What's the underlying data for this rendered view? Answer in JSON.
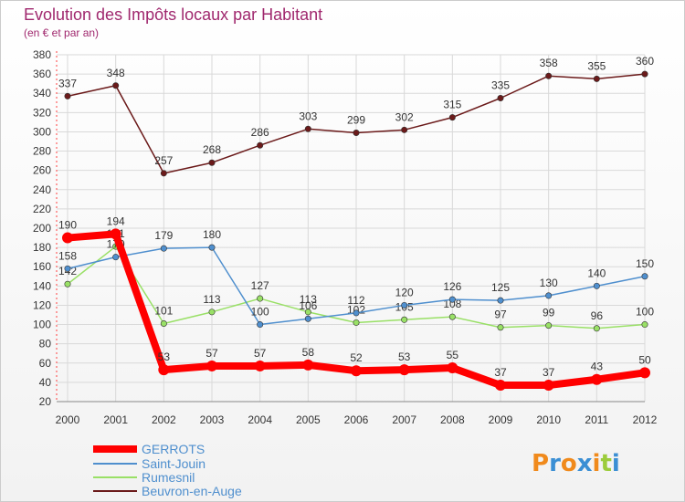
{
  "chart_data": {
    "type": "line",
    "title": "Evolution des Impôts locaux par Habitant",
    "subtitle": "(en € et par an)",
    "xlabel": "",
    "ylabel": "",
    "x": [
      "2000",
      "2001",
      "2002",
      "2003",
      "2004",
      "2005",
      "2006",
      "2007",
      "2008",
      "2009",
      "2010",
      "2011",
      "2012"
    ],
    "ylim": [
      20,
      380
    ],
    "yticks": [
      20,
      40,
      60,
      80,
      100,
      120,
      140,
      160,
      180,
      200,
      220,
      240,
      260,
      280,
      300,
      320,
      340,
      360,
      380
    ],
    "grid": true,
    "legend_position": "bottom-left",
    "series": [
      {
        "name": "GERROTS",
        "color": "#ff0000",
        "values": [
          190,
          194,
          53,
          57,
          57,
          58,
          52,
          53,
          55,
          37,
          37,
          43,
          50
        ]
      },
      {
        "name": "Saint-Jouin",
        "color": "#4f8fce",
        "values": [
          158,
          170,
          179,
          180,
          100,
          106,
          112,
          120,
          126,
          125,
          130,
          140,
          150
        ]
      },
      {
        "name": "Rumesnil",
        "color": "#99e066",
        "values": [
          142,
          181,
          101,
          113,
          127,
          113,
          102,
          105,
          108,
          97,
          99,
          96,
          100
        ]
      },
      {
        "name": "Beuvron-en-Auge",
        "color": "#6b1a1a",
        "values": [
          337,
          348,
          257,
          268,
          286,
          303,
          299,
          302,
          315,
          335,
          358,
          355,
          360
        ]
      }
    ]
  },
  "logo": {
    "text": "Proxiti",
    "letters": [
      "P",
      "r",
      "o",
      "x",
      "i",
      "t",
      "i"
    ],
    "colors": [
      "#f08a1c",
      "#3b8fd4",
      "#f08a1c",
      "#3b8fd4",
      "#f08a1c",
      "#9ccc3c",
      "#3b8fd4"
    ]
  }
}
